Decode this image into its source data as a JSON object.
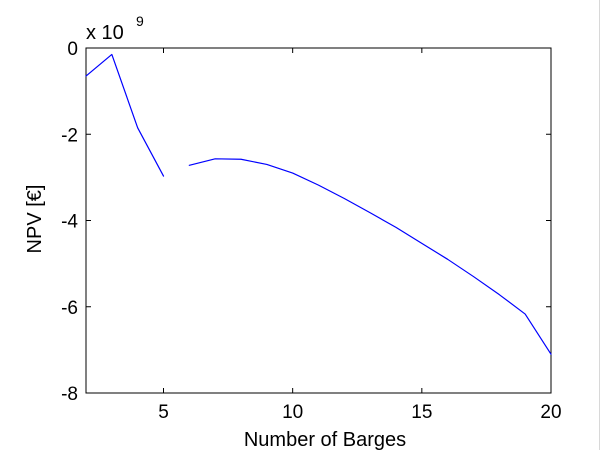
{
  "chart_data": {
    "type": "line",
    "title": "",
    "xlabel": "Number of Barges",
    "ylabel": "NPV [€]",
    "y_multiplier_base": "x 10",
    "y_multiplier_exponent": "9",
    "xlim": [
      2,
      20
    ],
    "ylim": [
      -8,
      0
    ],
    "x_ticks": [
      5,
      10,
      15,
      20
    ],
    "x_tick_labels": [
      "5",
      "10",
      "15",
      "20"
    ],
    "y_ticks": [
      0,
      -2,
      -4,
      -6,
      -8
    ],
    "y_tick_labels": [
      "0",
      "-2",
      "-4",
      "-6",
      "-8"
    ],
    "grid": false,
    "line_color": "#0000ff",
    "series": [
      {
        "segments": [
          {
            "x": [
              2,
              3,
              4,
              5
            ],
            "y": [
              -0.65,
              -0.15,
              -1.85,
              -2.97
            ]
          },
          {
            "x": [
              6,
              7,
              8,
              9,
              10,
              11,
              12,
              13,
              14,
              15,
              16,
              17,
              18,
              19,
              20
            ],
            "y": [
              -2.72,
              -2.57,
              -2.58,
              -2.7,
              -2.9,
              -3.18,
              -3.49,
              -3.82,
              -4.16,
              -4.53,
              -4.9,
              -5.3,
              -5.72,
              -6.17,
              -7.1
            ]
          }
        ]
      }
    ]
  }
}
